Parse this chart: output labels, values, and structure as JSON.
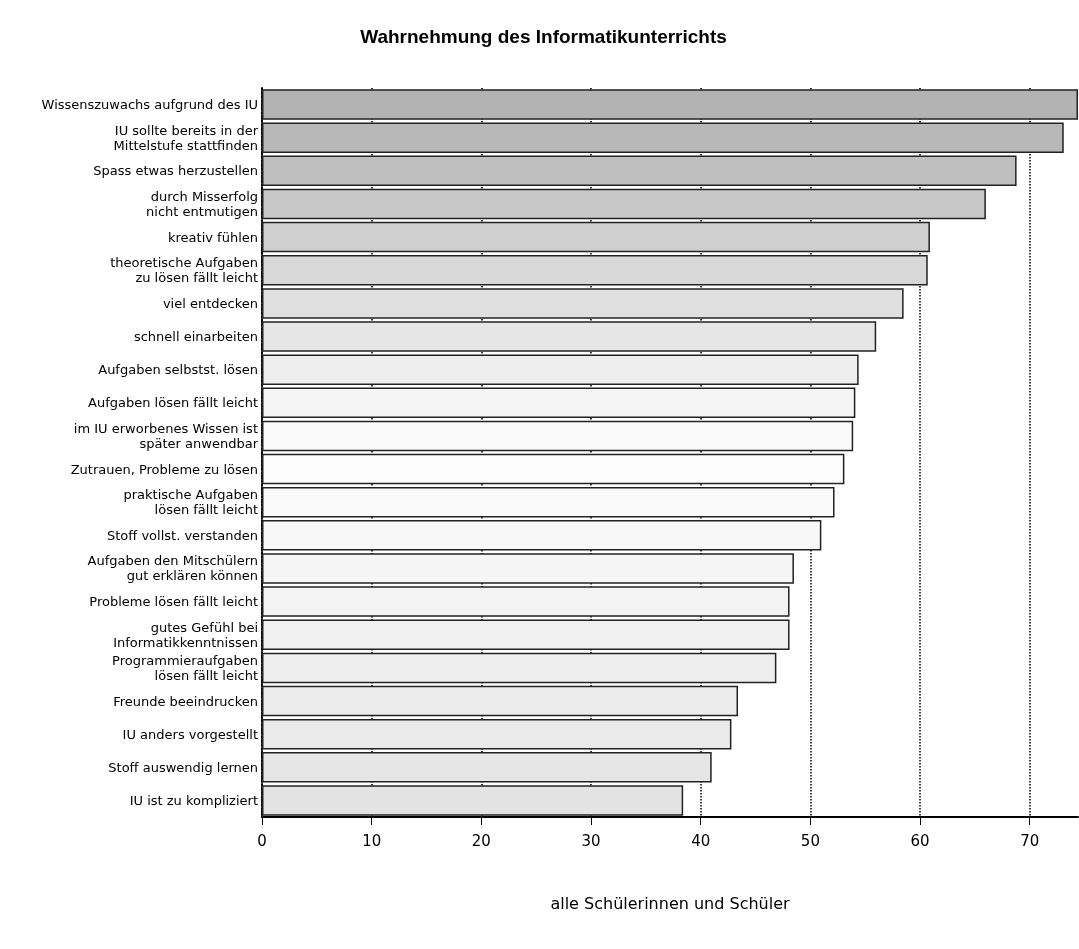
{
  "chart_data": {
    "type": "bar",
    "orientation": "horizontal",
    "title": "Wahrnehmung des Informatikunterrichts",
    "xlabel": "alle Schülerinnen und Schüler",
    "categories": [
      "Wissenszuwachs aufgrund des IU",
      "IU sollte bereits in der\nMittelstufe stattfinden",
      "Spass etwas herzustellen",
      "durch Misserfolg\nnicht entmutigen",
      "kreativ fühlen",
      "theoretische Aufgaben\nzu lösen fällt leicht",
      "viel entdecken",
      "schnell einarbeiten",
      "Aufgaben selbstst. lösen",
      "Aufgaben lösen fällt leicht",
      "im IU erworbenes Wissen ist\nspäter anwendbar",
      "Zutrauen, Probleme zu lösen",
      "praktische Aufgaben\nlösen fällt leicht",
      "Stoff vollst. verstanden",
      "Aufgaben den Mitschülern\ngut erklären können",
      "Probleme lösen fällt leicht",
      "gutes Gefühl bei\nInformatikkenntnissen",
      "Programmieraufgaben\nlösen fällt leicht",
      "Freunde beeindrucken",
      "IU anders vorgestellt",
      "Stoff auswendig lernen",
      "IU ist zu kompliziert"
    ],
    "values": [
      74.4,
      73.1,
      68.8,
      66.0,
      60.9,
      60.7,
      58.5,
      56.0,
      54.4,
      54.1,
      53.9,
      53.1,
      52.2,
      51.0,
      48.5,
      48.1,
      48.1,
      46.9,
      43.4,
      42.8,
      41.0,
      38.4
    ],
    "colors": [
      "#b3b3b3",
      "#b8b8b8",
      "#bfbfbf",
      "#c8c8c8",
      "#cfcfcf",
      "#d8d8d8",
      "#e0e0e0",
      "#e6e6e6",
      "#eeeeee",
      "#f5f5f5",
      "#fafafa",
      "#fcfcfc",
      "#fafafa",
      "#f8f8f8",
      "#f5f5f5",
      "#f3f3f3",
      "#f0f0f0",
      "#eeeeee",
      "#ececec",
      "#eaeaea",
      "#e6e6e6",
      "#e3e3e3"
    ],
    "xlim": [
      0,
      74.4
    ],
    "xticks": [
      0,
      10,
      20,
      30,
      40,
      50,
      60,
      70
    ],
    "grid": "x"
  }
}
